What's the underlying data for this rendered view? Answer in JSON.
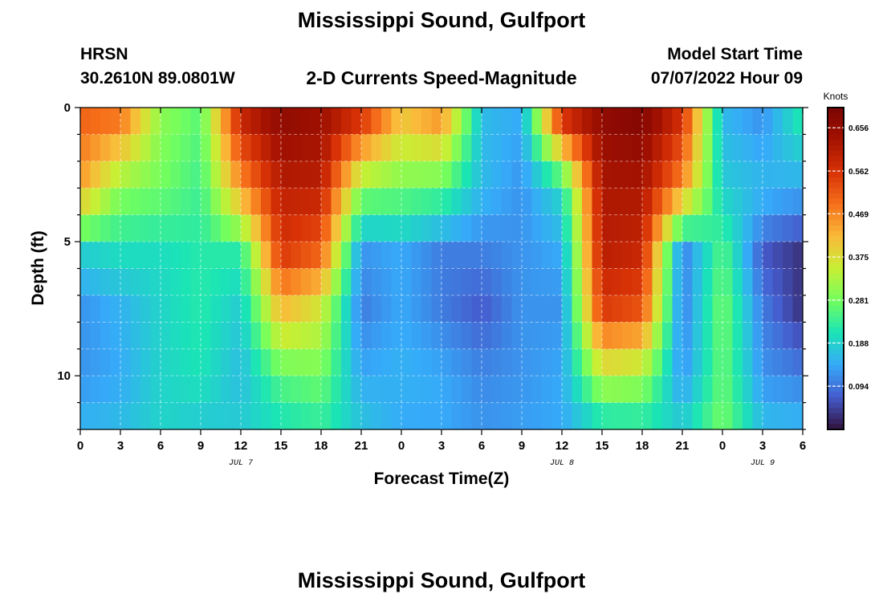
{
  "page": {
    "title": "Mississippi Sound, Gulfport",
    "footer_title": "Mississippi Sound, Gulfport",
    "station": "HRSN",
    "coords": "30.2610N  89.0801W",
    "subtitle": "2-D Currents Speed-Magnitude",
    "model_start_label": "Model Start Time",
    "model_start_value": "07/07/2022 Hour 09"
  },
  "chart_data": {
    "type": "heatmap",
    "title": "2-D Currents Speed-Magnitude",
    "xlabel": "Forecast Time(Z)",
    "ylabel": "Depth (ft)",
    "x_tick_labels": [
      "0",
      "3",
      "6",
      "9",
      "12",
      "15",
      "18",
      "21",
      "0",
      "3",
      "6",
      "9",
      "12",
      "15",
      "18",
      "21",
      "0",
      "3",
      "6"
    ],
    "x_hours_range": [
      0,
      54
    ],
    "date_labels": [
      {
        "label": "JUL 7",
        "hour": 12
      },
      {
        "label": "JUL 8",
        "hour": 36
      },
      {
        "label": "JUL 9",
        "hour": 51
      }
    ],
    "y_ticks": [
      0,
      5,
      10
    ],
    "y_tick_labels": [
      "0",
      "5",
      "10"
    ],
    "ylim": [
      0,
      12
    ],
    "y_inverted": true,
    "colorbar": {
      "label": "Knots",
      "range": [
        0,
        0.7
      ],
      "ticks": [
        0.094,
        0.188,
        0.281,
        0.375,
        0.469,
        0.562,
        0.656
      ],
      "tick_labels": [
        "0.094",
        "0.188",
        "0.281",
        "0.375",
        "0.469",
        "0.562",
        "0.656"
      ],
      "colormap": "turbo"
    },
    "grid": true,
    "field": {
      "description": "current speed (knots) by hour since start of JUL 7 and depth (ft)",
      "time_hours": [
        0,
        3,
        6,
        9,
        12,
        15,
        18,
        21,
        24,
        27,
        30,
        33,
        36,
        39,
        42,
        45,
        48,
        51,
        54
      ],
      "depths_ft": [
        0.5,
        3,
        5.5,
        7.5,
        10,
        11.7
      ],
      "values": [
        [
          0.5,
          0.48,
          0.3,
          0.26,
          0.58,
          0.66,
          0.64,
          0.55,
          0.4,
          0.45,
          0.16,
          0.14,
          0.55,
          0.66,
          0.68,
          0.56,
          0.16,
          0.12,
          0.22
        ],
        [
          0.44,
          0.3,
          0.28,
          0.24,
          0.45,
          0.6,
          0.6,
          0.3,
          0.28,
          0.26,
          0.16,
          0.12,
          0.2,
          0.62,
          0.62,
          0.46,
          0.18,
          0.16,
          0.14
        ],
        [
          0.18,
          0.2,
          0.2,
          0.22,
          0.22,
          0.55,
          0.5,
          0.12,
          0.14,
          0.1,
          0.1,
          0.12,
          0.14,
          0.6,
          0.58,
          0.1,
          0.26,
          0.07,
          0.03
        ],
        [
          0.12,
          0.15,
          0.19,
          0.22,
          0.18,
          0.42,
          0.36,
          0.1,
          0.14,
          0.1,
          0.07,
          0.12,
          0.12,
          0.55,
          0.52,
          0.1,
          0.28,
          0.1,
          0.03
        ],
        [
          0.12,
          0.14,
          0.19,
          0.21,
          0.16,
          0.26,
          0.28,
          0.14,
          0.15,
          0.14,
          0.11,
          0.12,
          0.14,
          0.34,
          0.32,
          0.12,
          0.27,
          0.12,
          0.1
        ],
        [
          0.15,
          0.16,
          0.19,
          0.18,
          0.18,
          0.21,
          0.23,
          0.17,
          0.14,
          0.14,
          0.12,
          0.13,
          0.14,
          0.21,
          0.22,
          0.18,
          0.28,
          0.16,
          0.15
        ]
      ]
    }
  }
}
